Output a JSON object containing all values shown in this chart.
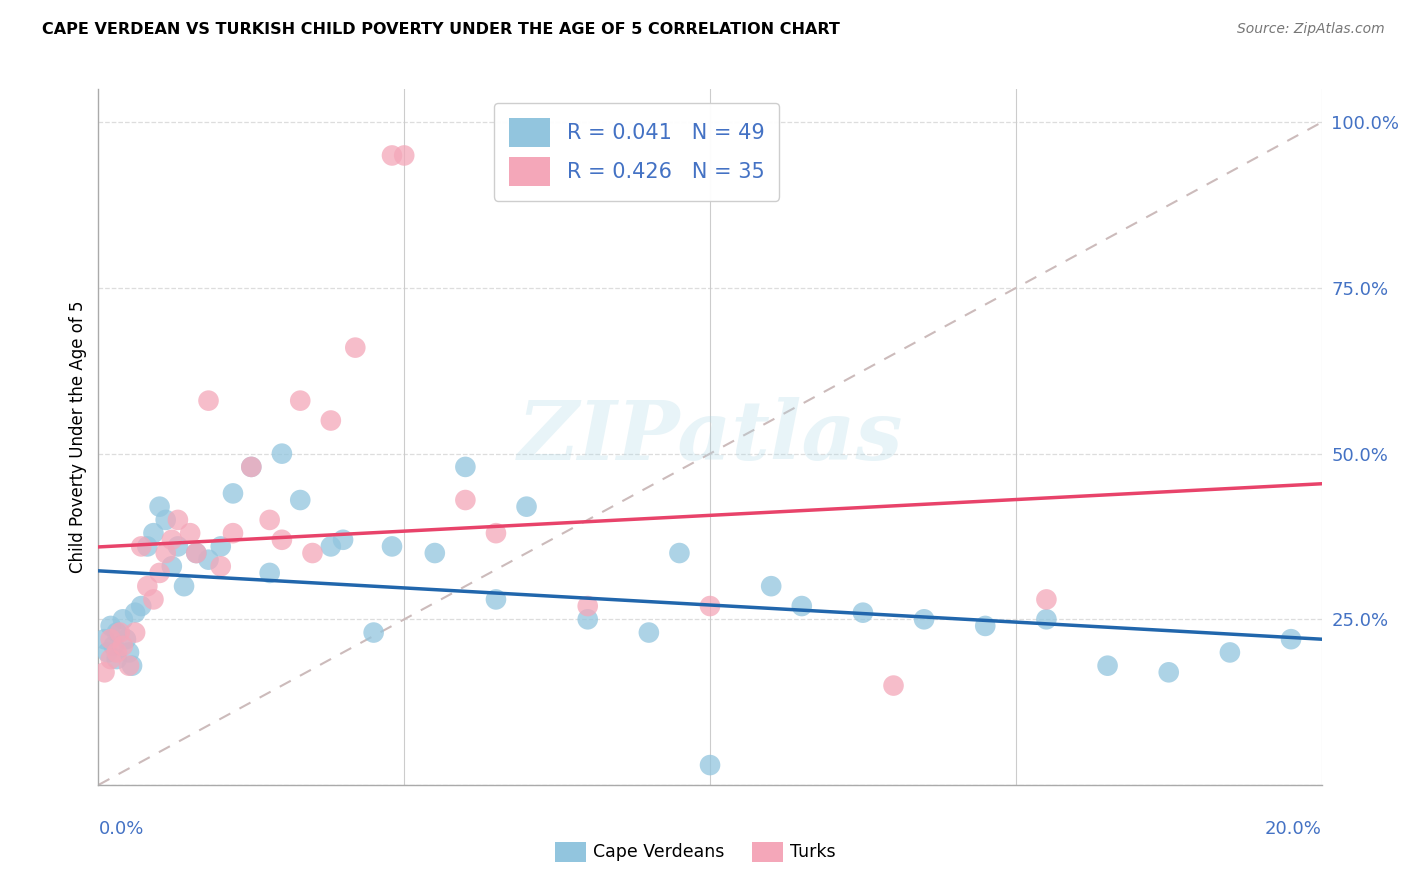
{
  "title": "CAPE VERDEAN VS TURKISH CHILD POVERTY UNDER THE AGE OF 5 CORRELATION CHART",
  "source": "Source: ZipAtlas.com",
  "ylabel": "Child Poverty Under the Age of 5",
  "legend_label1": "Cape Verdeans",
  "legend_label2": "Turks",
  "R1": "0.041",
  "N1": "49",
  "R2": "0.426",
  "N2": "35",
  "color_blue": "#92c5de",
  "color_pink": "#f4a7b9",
  "color_blue_line": "#2166ac",
  "color_pink_line": "#e8436a",
  "color_diag": "#ccbbbb",
  "background": "#ffffff",
  "xmin": 0.0,
  "xmax": 0.2,
  "ymin": 0.0,
  "ymax": 1.05,
  "cv_x": [
    0.001,
    0.0015,
    0.002,
    0.0025,
    0.003,
    0.003,
    0.004,
    0.0045,
    0.005,
    0.0055,
    0.006,
    0.007,
    0.008,
    0.009,
    0.01,
    0.011,
    0.012,
    0.013,
    0.014,
    0.016,
    0.018,
    0.02,
    0.022,
    0.025,
    0.028,
    0.03,
    0.033,
    0.038,
    0.04,
    0.045,
    0.048,
    0.055,
    0.06,
    0.065,
    0.07,
    0.08,
    0.09,
    0.095,
    0.1,
    0.11,
    0.115,
    0.125,
    0.135,
    0.145,
    0.155,
    0.165,
    0.175,
    0.185,
    0.195
  ],
  "cv_y": [
    0.22,
    0.2,
    0.24,
    0.21,
    0.23,
    0.19,
    0.25,
    0.22,
    0.2,
    0.18,
    0.26,
    0.27,
    0.36,
    0.38,
    0.42,
    0.4,
    0.33,
    0.36,
    0.3,
    0.35,
    0.34,
    0.36,
    0.44,
    0.48,
    0.32,
    0.5,
    0.43,
    0.36,
    0.37,
    0.23,
    0.36,
    0.35,
    0.48,
    0.28,
    0.42,
    0.25,
    0.23,
    0.35,
    0.03,
    0.3,
    0.27,
    0.26,
    0.25,
    0.24,
    0.25,
    0.18,
    0.17,
    0.2,
    0.22
  ],
  "tk_x": [
    0.001,
    0.002,
    0.002,
    0.003,
    0.0035,
    0.004,
    0.005,
    0.006,
    0.007,
    0.008,
    0.009,
    0.01,
    0.011,
    0.012,
    0.013,
    0.015,
    0.016,
    0.018,
    0.02,
    0.022,
    0.025,
    0.028,
    0.03,
    0.033,
    0.035,
    0.038,
    0.042,
    0.048,
    0.05,
    0.06,
    0.065,
    0.08,
    0.1,
    0.13,
    0.155
  ],
  "tk_y": [
    0.17,
    0.22,
    0.19,
    0.2,
    0.23,
    0.21,
    0.18,
    0.23,
    0.36,
    0.3,
    0.28,
    0.32,
    0.35,
    0.37,
    0.4,
    0.38,
    0.35,
    0.58,
    0.33,
    0.38,
    0.48,
    0.4,
    0.37,
    0.58,
    0.35,
    0.55,
    0.66,
    0.95,
    0.95,
    0.43,
    0.38,
    0.27,
    0.27,
    0.15,
    0.28
  ]
}
